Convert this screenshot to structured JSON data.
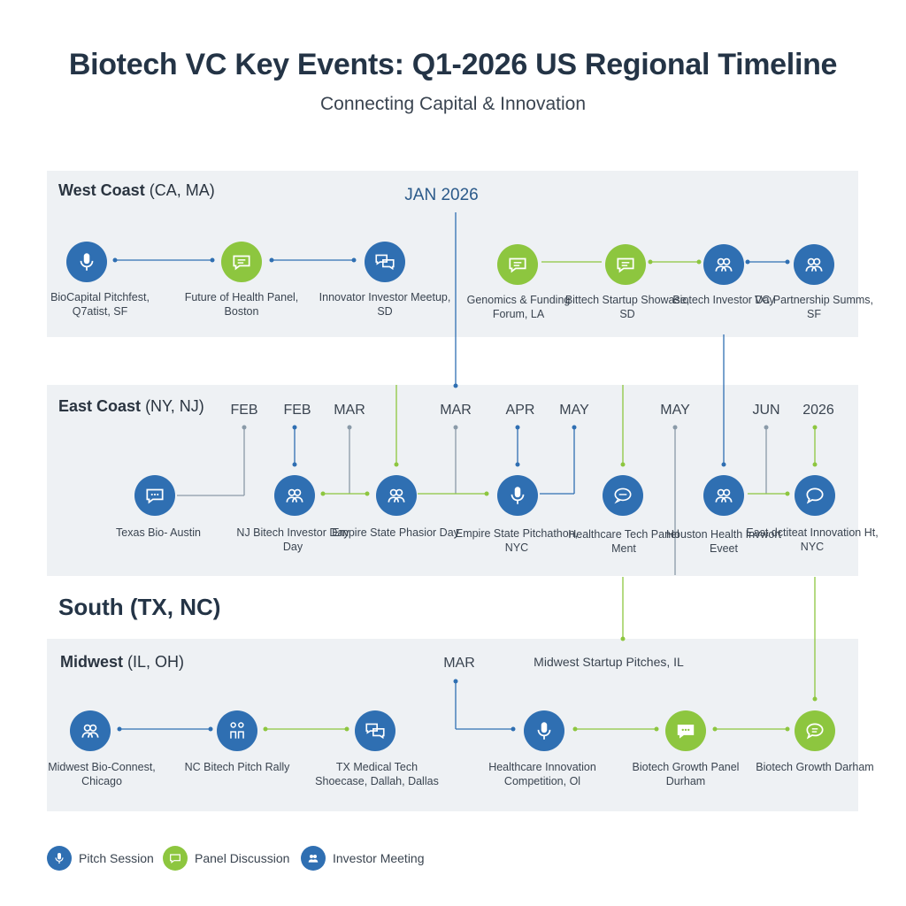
{
  "title": "Biotech VC Key Events: Q1-2026 US Regional Timeline",
  "subtitle": "Connecting Capital & Innovation",
  "colors": {
    "pitch": "#2f6fb2",
    "panel": "#8dc63f",
    "investor": "#2f6fb2",
    "band": "#eef1f4"
  },
  "regions": {
    "west": {
      "name": "West Coast",
      "states": "(CA, MA)"
    },
    "east": {
      "name": "East Coast",
      "states": "(NY, NJ)"
    },
    "south": {
      "name": "South (TX, NC)"
    },
    "midwest": {
      "name": "Midwest",
      "states": "(IL, OH)"
    }
  },
  "months": {
    "jan": "JAN 2026",
    "feb1": "FEB",
    "feb2": "FEB",
    "mar1": "MAR",
    "mar2": "MAR",
    "apr": "APR",
    "may1": "MAY",
    "may2": "MAY",
    "jun": "JUN",
    "y2026": "2026",
    "mar3": "MAR"
  },
  "midwest_header_event": "Midwest Startup Pitches, IL",
  "events": {
    "w1": {
      "type": "pitch",
      "icon": "microphone-icon",
      "label": "BioCapital Pitchfest, Q7atist, SF"
    },
    "w2": {
      "type": "panel",
      "icon": "chat-icon",
      "label": "Future of Health Panel, Boston"
    },
    "w3": {
      "type": "investor",
      "icon": "chat-bubbles-icon",
      "label": "Innovator Investor Meetup, SD"
    },
    "w4": {
      "type": "panel",
      "icon": "chat-icon",
      "label": "Genomics & Funding Forum, LA"
    },
    "w5": {
      "type": "panel",
      "icon": "chat-icon",
      "label": "Bittech Startup Showase, SD"
    },
    "w6": {
      "type": "investor",
      "icon": "people-icon",
      "label": "Biotech Investor Day"
    },
    "w7": {
      "type": "investor",
      "icon": "people-icon",
      "label": "VC Partnership Summs, SF"
    },
    "e1": {
      "type": "investor",
      "icon": "chat-icon",
      "label": "Texas Bio- Austin"
    },
    "e2": {
      "type": "investor",
      "icon": "people-icon",
      "label": "NJ Bitech Investor Day Day"
    },
    "e3": {
      "type": "investor",
      "icon": "people-icon",
      "label": "Empire State Phasior Day"
    },
    "e4": {
      "type": "pitch",
      "icon": "microphone-icon",
      "label": "Empire State Pitchathon, NYC"
    },
    "e5": {
      "type": "investor",
      "icon": "chat-bubbles-icon",
      "label": "Healthcare Tech Panel Ment"
    },
    "e6": {
      "type": "investor",
      "icon": "people-icon",
      "label": "Houston Health Invwort Eveet"
    },
    "e7": {
      "type": "investor",
      "icon": "chat-icon",
      "label": "East dctiteat Innovation Ht, NYC"
    },
    "m1": {
      "type": "investor",
      "icon": "people-icon",
      "label": "Midwest Bio-Connest, Chicago"
    },
    "m2": {
      "type": "investor",
      "icon": "two-people-icon",
      "label": "NC Bitech Pitch Rally"
    },
    "m3": {
      "type": "investor",
      "icon": "chat-bubbles-icon",
      "label": "TX Medical Tech Shoecase, Dallah, Dallas"
    },
    "m4": {
      "type": "pitch",
      "icon": "microphone-icon",
      "label": "Healthcare Innovation Competition, Ol"
    },
    "m5": {
      "type": "panel",
      "icon": "chat-icon",
      "label": "Biotech Growth Panel Durham"
    },
    "m6": {
      "type": "panel",
      "icon": "chat-icon",
      "label": "Biotech Growth Darham"
    }
  },
  "legend": [
    {
      "type": "pitch",
      "icon": "microphone-icon",
      "label": "Pitch Session"
    },
    {
      "type": "panel",
      "icon": "chat-icon",
      "label": "Panel Discussion"
    },
    {
      "type": "investor",
      "icon": "people-icon",
      "label": "Investor Meeting"
    }
  ]
}
